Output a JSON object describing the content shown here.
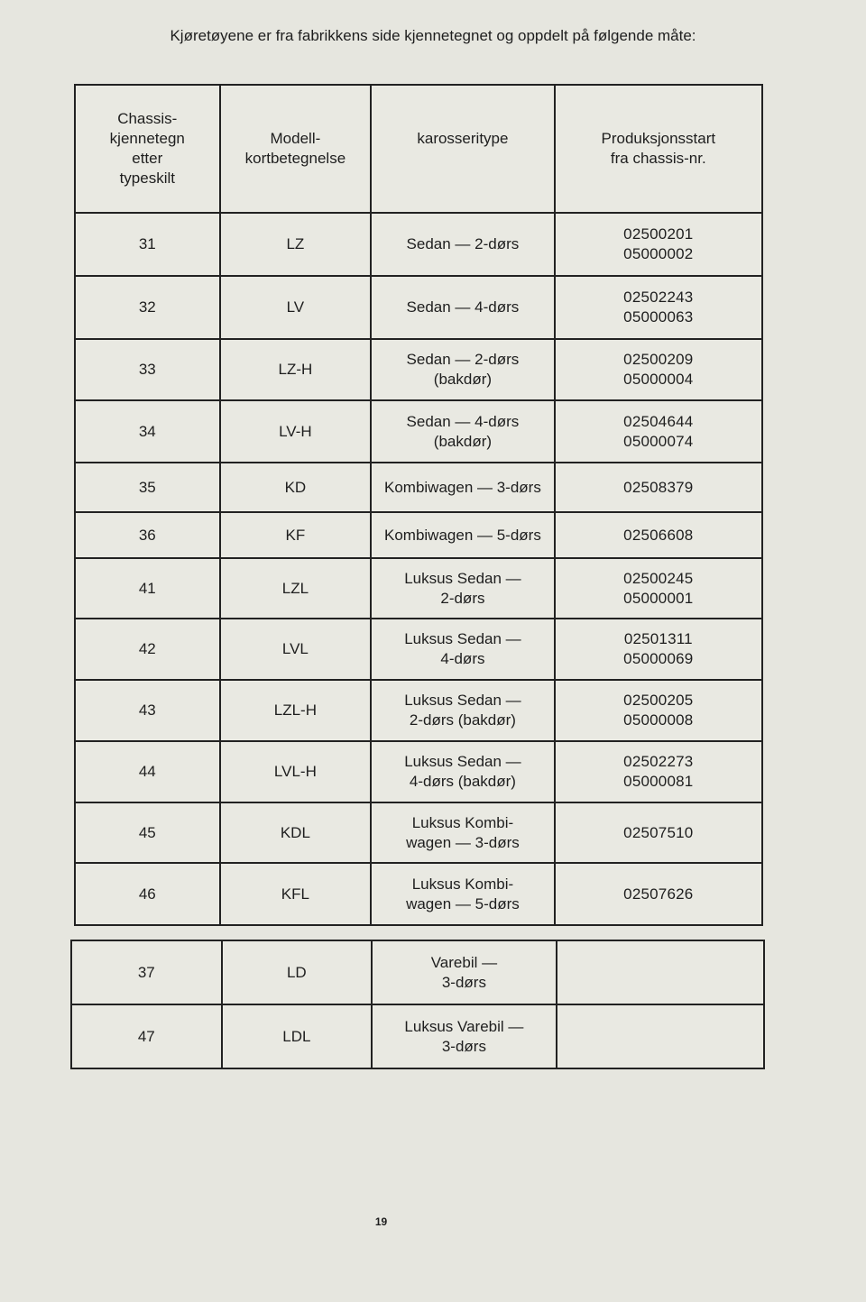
{
  "intro": "Kjøretøyene er fra fabrikkens side kjennetegnet og oppdelt på følgende måte:",
  "table": {
    "headers": [
      "Chassis-\nkjennetegn\netter\ntypeskilt",
      "Modell-\nkortbetegnelse",
      "karosseritype",
      "Produksjonsstart\nfra chassis-nr."
    ],
    "rows": [
      [
        "31",
        "LZ",
        "Sedan — 2-dørs",
        "02500201\n05000002"
      ],
      [
        "32",
        "LV",
        "Sedan — 4-dørs",
        "02502243\n05000063"
      ],
      [
        "33",
        "LZ-H",
        "Sedan — 2-dørs\n(bakdør)",
        "02500209\n05000004"
      ],
      [
        "34",
        "LV-H",
        "Sedan — 4-dørs\n(bakdør)",
        "02504644\n05000074"
      ],
      [
        "35",
        "KD",
        "Kombiwagen — 3-dørs",
        "02508379"
      ],
      [
        "36",
        "KF",
        "Kombiwagen — 5-dørs",
        "02506608"
      ],
      [
        "41",
        "LZL",
        "Luksus Sedan —\n2-dørs",
        "02500245\n05000001"
      ],
      [
        "42",
        "LVL",
        "Luksus Sedan —\n4-dørs",
        "02501311\n05000069"
      ],
      [
        "43",
        "LZL-H",
        "Luksus Sedan —\n2-dørs (bakdør)",
        "02500205\n05000008"
      ],
      [
        "44",
        "LVL-H",
        "Luksus Sedan —\n4-dørs (bakdør)",
        "02502273\n05000081"
      ],
      [
        "45",
        "KDL",
        "Luksus Kombi-\nwagen — 3-dørs",
        "02507510"
      ],
      [
        "46",
        "KFL",
        "Luksus Kombi-\nwagen — 5-dørs",
        "02507626"
      ]
    ]
  },
  "table2": {
    "rows": [
      [
        "37",
        "LD",
        "Varebil —\n3-dørs",
        ""
      ],
      [
        "47",
        "LDL",
        "Luksus Varebil —\n3-dørs",
        ""
      ]
    ]
  },
  "page_number": "19"
}
